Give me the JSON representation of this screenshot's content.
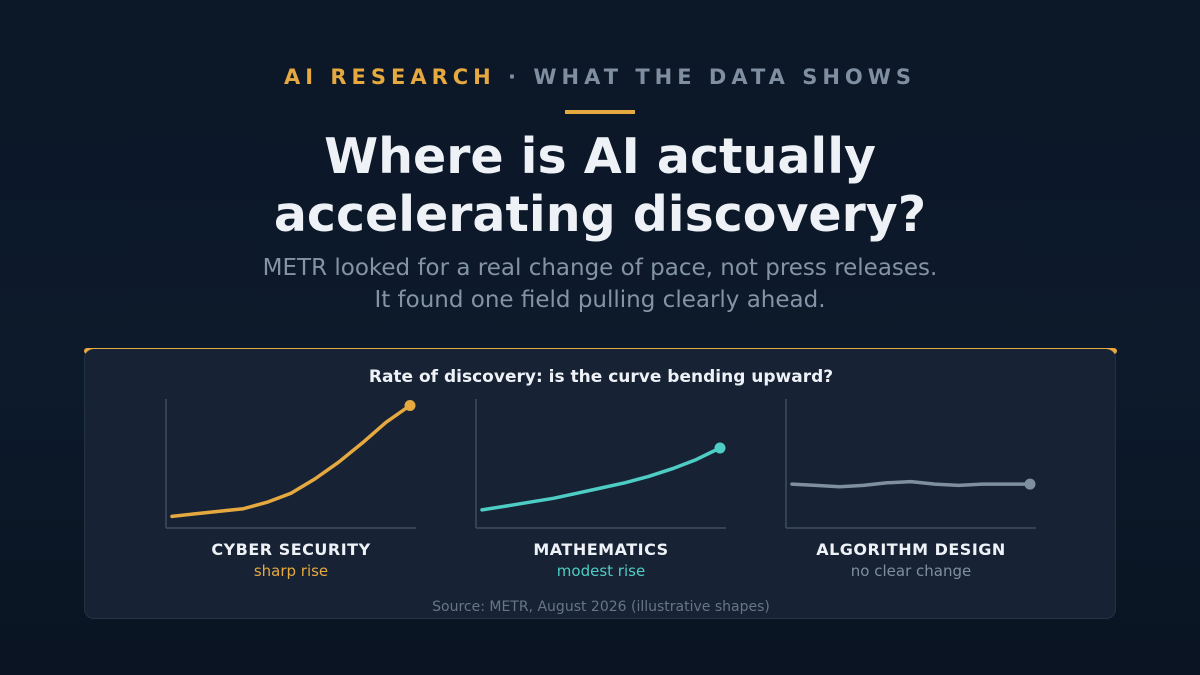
{
  "header": {
    "kicker_primary": "AI RESEARCH",
    "kicker_secondary": "· WHAT THE DATA SHOWS",
    "title_line1": "Where is AI actually",
    "title_line2": "accelerating discovery?",
    "subtitle_line1": "METR looked for a real change of pace, not press releases.",
    "subtitle_line2": "It found one field pulling clearly ahead."
  },
  "colors": {
    "accent": "#e5a93f",
    "teal": "#4ecdc4",
    "gray": "#7f8ea0",
    "axis": "#3d4c60"
  },
  "chart_data": {
    "type": "line",
    "title": "Rate of discovery: is the curve bending upward?",
    "x": [
      0,
      1,
      2,
      3,
      4,
      5,
      6,
      7,
      8,
      9,
      10
    ],
    "ylim": [
      0,
      10
    ],
    "series": [
      {
        "label": "CYBER SECURITY",
        "verdict": "sharp rise",
        "color": "#e5a93f",
        "values": [
          0.9,
          1.1,
          1.3,
          1.5,
          2.0,
          2.7,
          3.8,
          5.1,
          6.6,
          8.2,
          9.5
        ]
      },
      {
        "label": "MATHEMATICS",
        "verdict": "modest rise",
        "color": "#4ecdc4",
        "values": [
          1.4,
          1.7,
          2.0,
          2.3,
          2.7,
          3.1,
          3.5,
          4.0,
          4.6,
          5.3,
          6.2
        ]
      },
      {
        "label": "ALGORITHM DESIGN",
        "verdict": "no clear change",
        "color": "#7f8ea0",
        "values": [
          3.4,
          3.3,
          3.2,
          3.3,
          3.5,
          3.6,
          3.4,
          3.3,
          3.4,
          3.4,
          3.4
        ]
      }
    ],
    "source": "Source: METR, August 2026 (illustrative shapes)"
  }
}
